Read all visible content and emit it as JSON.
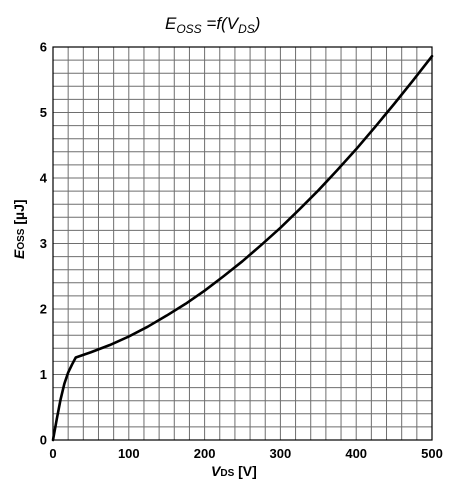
{
  "chart_data": {
    "type": "line",
    "title": {
      "main": "E",
      "main_sub": "OSS",
      "rest": " =f(V",
      "rest_sub": "DS",
      "close": ")"
    },
    "xlabel": {
      "main": "V",
      "sub": "DS",
      "unit": " [V]"
    },
    "ylabel": {
      "main": "E",
      "sub": "OSS",
      "unit": " [µJ]"
    },
    "xlim": [
      0,
      500
    ],
    "ylim": [
      0,
      6
    ],
    "x_ticks": [
      0,
      100,
      200,
      300,
      400,
      500
    ],
    "y_ticks": [
      0,
      1,
      2,
      3,
      4,
      5,
      6
    ],
    "x_ticklabels": [
      "0",
      "100",
      "200",
      "300",
      "400",
      "500"
    ],
    "y_ticklabels": [
      "0",
      "1",
      "2",
      "3",
      "4",
      "5",
      "6"
    ],
    "grid": true,
    "grid_x_step": 20,
    "grid_y_step": 0.2,
    "series": [
      {
        "color": "#000000",
        "x": [
          0,
          5,
          10,
          15,
          20,
          25,
          30,
          50,
          75,
          100,
          125,
          150,
          175,
          200,
          225,
          250,
          275,
          300,
          325,
          350,
          375,
          400,
          425,
          450,
          475,
          500
        ],
        "y": [
          0,
          0.32,
          0.62,
          0.86,
          1.03,
          1.15,
          1.26,
          1.34,
          1.45,
          1.58,
          1.73,
          1.9,
          2.08,
          2.28,
          2.5,
          2.73,
          2.98,
          3.24,
          3.52,
          3.81,
          4.12,
          4.44,
          4.78,
          5.13,
          5.49,
          5.86
        ]
      }
    ]
  }
}
